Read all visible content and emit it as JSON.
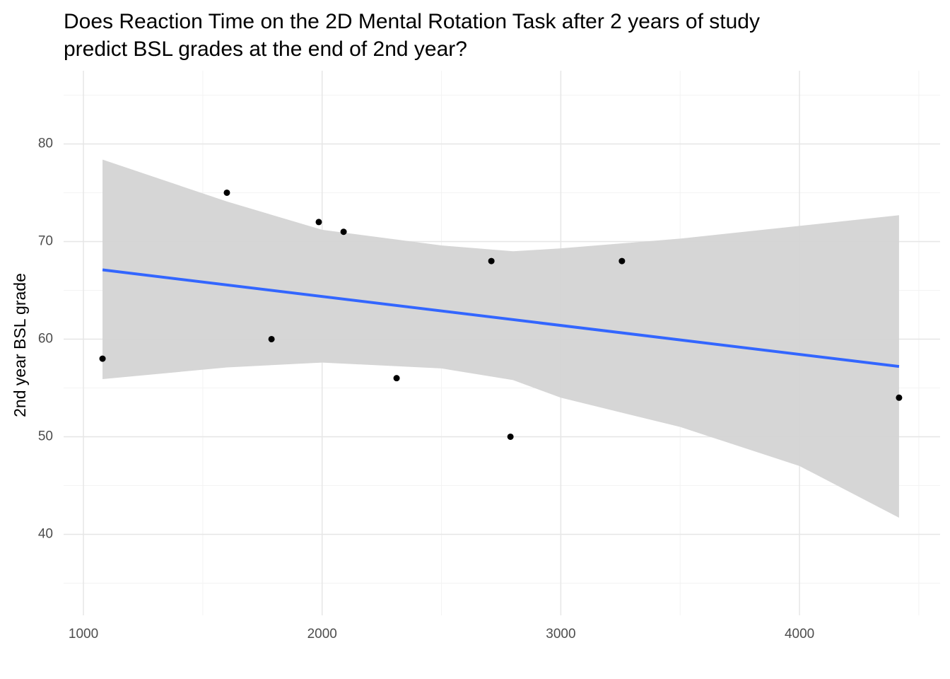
{
  "chart_data": {
    "type": "scatter",
    "title": [
      "Does Reaction Time on the 2D Mental Rotation Task after 2 years of study",
      "predict BSL grades at the end of 2nd year?"
    ],
    "y_label": "2nd year BSL grade",
    "xlim": [
      917,
      4589
    ],
    "ylim": [
      31.7,
      87.5
    ],
    "xticks": [
      1000,
      2000,
      3000,
      4000
    ],
    "yticks": [
      40,
      50,
      60,
      70,
      80
    ],
    "x_minor_grid": [
      1500,
      2500,
      3500,
      4500
    ],
    "y_minor_grid": [
      35,
      45,
      55,
      65,
      75,
      85
    ],
    "grid": true,
    "points": {
      "color": "#000000",
      "x": [
        1080,
        1601,
        1788,
        1986,
        2090,
        2312,
        2709,
        2789,
        3256,
        4417
      ],
      "values": [
        58,
        75,
        60,
        72,
        71,
        56,
        68,
        50,
        68,
        54
      ]
    },
    "fit": {
      "color": "#3366ff",
      "x": [
        1080,
        4417
      ],
      "values": [
        67.1,
        57.2
      ]
    },
    "band": {
      "color": "#d4d4d4",
      "x": [
        1080,
        1601,
        2000,
        2500,
        2800,
        3000,
        3500,
        4000,
        4417
      ],
      "upper": [
        78.4,
        74.1,
        71.2,
        69.6,
        69.0,
        69.3,
        70.3,
        71.6,
        72.7
      ],
      "lower": [
        55.9,
        57.1,
        57.6,
        57.0,
        55.8,
        54.0,
        51.0,
        47.0,
        41.7
      ]
    }
  }
}
